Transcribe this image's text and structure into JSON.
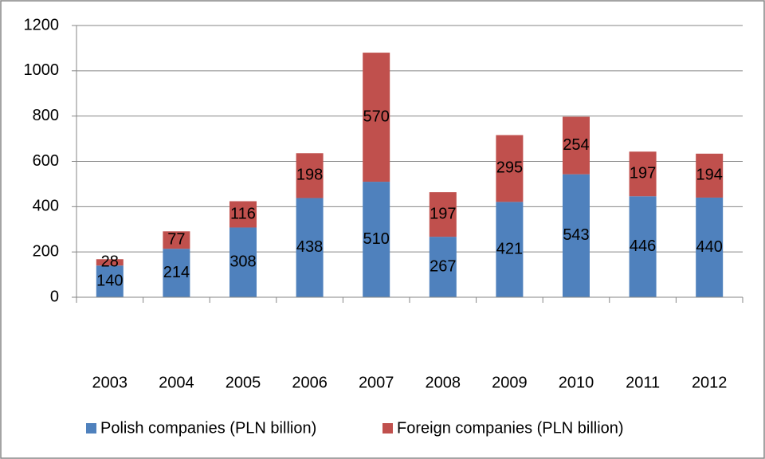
{
  "chart_data": {
    "type": "stacked_bar",
    "categories": [
      "2003",
      "2004",
      "2005",
      "2006",
      "2007",
      "2008",
      "2009",
      "2010",
      "2011",
      "2012"
    ],
    "series": [
      {
        "name": "Polish companies (PLN billion)",
        "color": "#4f81bd",
        "values": [
          140,
          214,
          308,
          438,
          510,
          267,
          421,
          543,
          446,
          440
        ]
      },
      {
        "name": "Foreign companies (PLN billion)",
        "color": "#c0504d",
        "values": [
          28,
          77,
          116,
          198,
          570,
          197,
          295,
          254,
          197,
          194
        ]
      }
    ],
    "ylim": [
      0,
      1200
    ],
    "yticks": [
      0,
      200,
      400,
      600,
      800,
      1000,
      1200
    ],
    "grid": true,
    "legend": "bottom"
  }
}
